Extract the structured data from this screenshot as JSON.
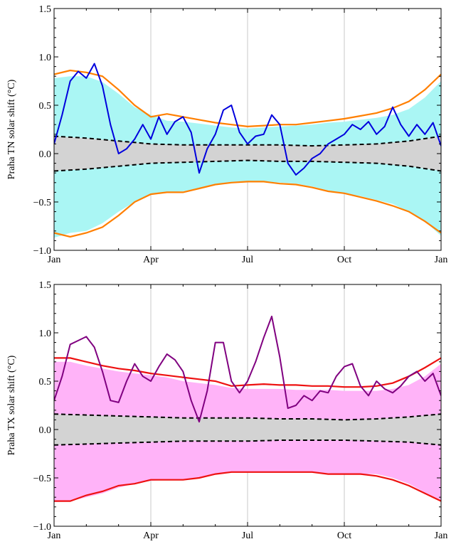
{
  "chart_data": [
    {
      "type": "line",
      "title": "",
      "xlabel": "",
      "ylabel": "Praha TN solar shift (°C)",
      "xlim": [
        0,
        12
      ],
      "ylim": [
        -1.0,
        1.5
      ],
      "x_ticks": [
        0,
        3,
        6,
        9,
        12
      ],
      "x_tick_labels": [
        "Jan",
        "Apr",
        "Jul",
        "Oct",
        "Jan"
      ],
      "y_ticks": [
        -1.0,
        -0.5,
        0.0,
        0.5,
        1.0,
        1.5
      ],
      "y_tick_labels": [
        "−1.0",
        "−0.5",
        "0.0",
        "0.5",
        "1.0",
        "1.5"
      ],
      "grid_vertical": [
        3,
        6,
        9
      ],
      "colors": {
        "band": "#aaf6f4",
        "envelope": "#ff7f00",
        "signal": "#0000dd",
        "inner": "#d3d3d3",
        "inner_line": "#000000"
      },
      "band": {
        "x": [
          0,
          0.5,
          1,
          1.5,
          2,
          2.5,
          3,
          3.5,
          4,
          4.5,
          5,
          5.5,
          6,
          6.5,
          7,
          7.5,
          8,
          8.5,
          9,
          9.5,
          10,
          10.5,
          11,
          11.5,
          12
        ],
        "upper": [
          0.78,
          0.8,
          0.8,
          0.74,
          0.62,
          0.48,
          0.4,
          0.34,
          0.33,
          0.31,
          0.29,
          0.27,
          0.26,
          0.27,
          0.28,
          0.29,
          0.3,
          0.32,
          0.33,
          0.35,
          0.37,
          0.4,
          0.46,
          0.58,
          0.75
        ],
        "lower": [
          -0.87,
          -0.82,
          -0.8,
          -0.72,
          -0.6,
          -0.5,
          -0.42,
          -0.4,
          -0.39,
          -0.36,
          -0.32,
          -0.3,
          -0.29,
          -0.29,
          -0.3,
          -0.31,
          -0.34,
          -0.38,
          -0.41,
          -0.44,
          -0.48,
          -0.52,
          -0.6,
          -0.7,
          -0.85
        ]
      },
      "inner_band": {
        "x": [
          0,
          1,
          2,
          3,
          4,
          5,
          6,
          7,
          8,
          9,
          10,
          11,
          12
        ],
        "upper": [
          0.18,
          0.16,
          0.13,
          0.1,
          0.09,
          0.09,
          0.09,
          0.09,
          0.08,
          0.09,
          0.1,
          0.13,
          0.18
        ],
        "lower": [
          -0.18,
          -0.16,
          -0.13,
          -0.1,
          -0.09,
          -0.08,
          -0.07,
          -0.08,
          -0.08,
          -0.09,
          -0.1,
          -0.13,
          -0.18
        ]
      },
      "envelope": {
        "x": [
          0,
          0.5,
          1,
          1.5,
          2,
          2.5,
          3,
          3.5,
          4,
          4.5,
          5,
          5.5,
          6,
          6.5,
          7,
          7.5,
          8,
          8.5,
          9,
          9.5,
          10,
          10.5,
          11,
          11.5,
          12
        ],
        "upper": [
          0.82,
          0.86,
          0.84,
          0.8,
          0.66,
          0.5,
          0.38,
          0.41,
          0.38,
          0.35,
          0.32,
          0.3,
          0.28,
          0.29,
          0.3,
          0.3,
          0.32,
          0.34,
          0.36,
          0.39,
          0.42,
          0.47,
          0.54,
          0.66,
          0.82
        ],
        "lower": [
          -0.82,
          -0.86,
          -0.82,
          -0.76,
          -0.64,
          -0.5,
          -0.42,
          -0.4,
          -0.4,
          -0.36,
          -0.32,
          -0.3,
          -0.29,
          -0.29,
          -0.31,
          -0.32,
          -0.35,
          -0.39,
          -0.41,
          -0.45,
          -0.49,
          -0.54,
          -0.6,
          -0.7,
          -0.82
        ]
      },
      "signal": {
        "x": [
          0,
          0.25,
          0.5,
          0.75,
          1,
          1.25,
          1.5,
          1.75,
          2,
          2.25,
          2.5,
          2.75,
          3,
          3.25,
          3.5,
          3.75,
          4,
          4.25,
          4.5,
          4.75,
          5,
          5.25,
          5.5,
          5.75,
          6,
          6.25,
          6.5,
          6.75,
          7,
          7.25,
          7.5,
          7.75,
          8,
          8.25,
          8.5,
          8.75,
          9,
          9.25,
          9.5,
          9.75,
          10,
          10.25,
          10.5,
          10.75,
          11,
          11.25,
          11.5,
          11.75,
          12
        ],
        "y": [
          0.1,
          0.4,
          0.75,
          0.85,
          0.78,
          0.93,
          0.7,
          0.3,
          0.0,
          0.05,
          0.15,
          0.3,
          0.15,
          0.38,
          0.2,
          0.33,
          0.38,
          0.22,
          -0.2,
          0.05,
          0.2,
          0.45,
          0.5,
          0.22,
          0.1,
          0.18,
          0.2,
          0.4,
          0.3,
          -0.1,
          -0.22,
          -0.15,
          -0.05,
          0.0,
          0.1,
          0.15,
          0.2,
          0.3,
          0.25,
          0.33,
          0.2,
          0.28,
          0.48,
          0.3,
          0.18,
          0.3,
          0.2,
          0.32,
          0.08
        ]
      }
    },
    {
      "type": "line",
      "title": "",
      "xlabel": "",
      "ylabel": "Praha TX solar shift (°C)",
      "xlim": [
        0,
        12
      ],
      "ylim": [
        -1.0,
        1.5
      ],
      "x_ticks": [
        0,
        3,
        6,
        9,
        12
      ],
      "x_tick_labels": [
        "Jan",
        "Apr",
        "Jul",
        "Oct",
        "Jan"
      ],
      "y_ticks": [
        -1.0,
        -0.5,
        0.0,
        0.5,
        1.0,
        1.5
      ],
      "y_tick_labels": [
        "−1.0",
        "−0.5",
        "0.0",
        "0.5",
        "1.0",
        "1.5"
      ],
      "grid_vertical": [
        3,
        6,
        9
      ],
      "colors": {
        "band": "#ffb3f8",
        "envelope": "#ee1111",
        "signal": "#800080",
        "inner": "#d3d3d3",
        "inner_line": "#000000"
      },
      "band": {
        "x": [
          0,
          0.5,
          1,
          1.5,
          2,
          2.5,
          3,
          3.5,
          4,
          4.5,
          5,
          5.5,
          6,
          6.5,
          7,
          7.5,
          8,
          8.5,
          9,
          9.5,
          10,
          10.5,
          11,
          11.5,
          12
        ],
        "upper": [
          0.7,
          0.7,
          0.66,
          0.63,
          0.6,
          0.58,
          0.56,
          0.54,
          0.5,
          0.48,
          0.46,
          0.43,
          0.42,
          0.42,
          0.42,
          0.41,
          0.41,
          0.41,
          0.4,
          0.4,
          0.4,
          0.42,
          0.46,
          0.55,
          0.68
        ],
        "lower": [
          -0.75,
          -0.74,
          -0.7,
          -0.66,
          -0.6,
          -0.56,
          -0.53,
          -0.52,
          -0.52,
          -0.5,
          -0.46,
          -0.44,
          -0.44,
          -0.44,
          -0.44,
          -0.44,
          -0.44,
          -0.45,
          -0.46,
          -0.46,
          -0.46,
          -0.5,
          -0.56,
          -0.65,
          -0.73
        ]
      },
      "inner_band": {
        "x": [
          0,
          1,
          2,
          3,
          4,
          5,
          6,
          7,
          8,
          9,
          10,
          11,
          12
        ],
        "upper": [
          0.16,
          0.15,
          0.14,
          0.13,
          0.12,
          0.12,
          0.12,
          0.11,
          0.11,
          0.1,
          0.11,
          0.13,
          0.16
        ],
        "lower": [
          -0.16,
          -0.15,
          -0.14,
          -0.13,
          -0.12,
          -0.12,
          -0.12,
          -0.11,
          -0.11,
          -0.11,
          -0.12,
          -0.13,
          -0.16
        ]
      },
      "envelope": {
        "x": [
          0,
          0.5,
          1,
          1.5,
          2,
          2.5,
          3,
          3.5,
          4,
          4.5,
          5,
          5.5,
          6,
          6.5,
          7,
          7.5,
          8,
          8.5,
          9,
          9.5,
          10,
          10.5,
          11,
          11.5,
          12
        ],
        "upper": [
          0.74,
          0.74,
          0.7,
          0.66,
          0.63,
          0.61,
          0.58,
          0.56,
          0.54,
          0.52,
          0.5,
          0.45,
          0.46,
          0.47,
          0.46,
          0.46,
          0.45,
          0.45,
          0.44,
          0.44,
          0.45,
          0.48,
          0.55,
          0.64,
          0.74
        ],
        "lower": [
          -0.74,
          -0.74,
          -0.68,
          -0.64,
          -0.58,
          -0.56,
          -0.52,
          -0.52,
          -0.52,
          -0.5,
          -0.46,
          -0.44,
          -0.44,
          -0.44,
          -0.44,
          -0.44,
          -0.44,
          -0.46,
          -0.46,
          -0.46,
          -0.48,
          -0.52,
          -0.58,
          -0.66,
          -0.74
        ]
      },
      "signal": {
        "x": [
          0,
          0.25,
          0.5,
          0.75,
          1,
          1.25,
          1.5,
          1.75,
          2,
          2.25,
          2.5,
          2.75,
          3,
          3.25,
          3.5,
          3.75,
          4,
          4.25,
          4.5,
          4.75,
          5,
          5.25,
          5.5,
          5.75,
          6,
          6.25,
          6.5,
          6.75,
          7,
          7.25,
          7.5,
          7.75,
          8,
          8.25,
          8.5,
          8.75,
          9,
          9.25,
          9.5,
          9.75,
          10,
          10.25,
          10.5,
          10.75,
          11,
          11.25,
          11.5,
          11.75,
          12
        ],
        "y": [
          0.3,
          0.55,
          0.88,
          0.92,
          0.96,
          0.85,
          0.6,
          0.3,
          0.28,
          0.5,
          0.68,
          0.55,
          0.5,
          0.65,
          0.78,
          0.72,
          0.6,
          0.3,
          0.08,
          0.4,
          0.9,
          0.9,
          0.5,
          0.38,
          0.5,
          0.7,
          0.95,
          1.17,
          0.75,
          0.22,
          0.25,
          0.35,
          0.3,
          0.4,
          0.38,
          0.55,
          0.65,
          0.68,
          0.45,
          0.35,
          0.5,
          0.42,
          0.38,
          0.45,
          0.55,
          0.6,
          0.5,
          0.58,
          0.35
        ]
      }
    }
  ]
}
